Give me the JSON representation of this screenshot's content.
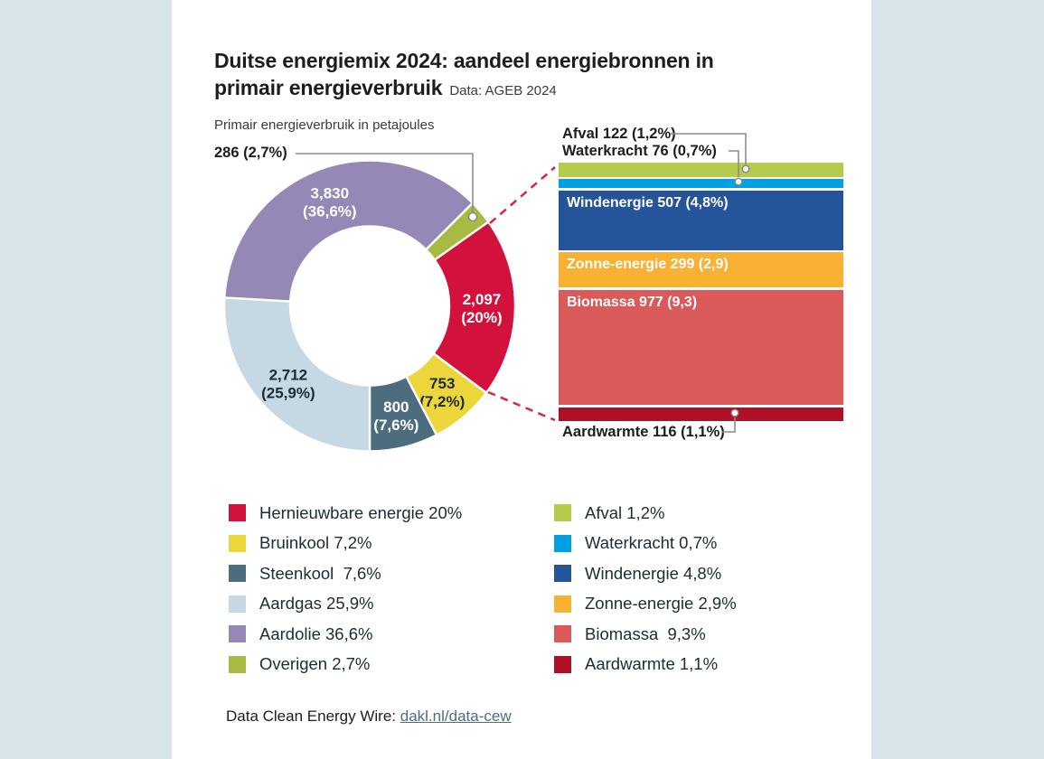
{
  "page": {
    "background_color": "#d7e4e9",
    "card_color": "#ffffff"
  },
  "header": {
    "title_line1": "Duitse energiemix 2024: aandeel energiebronnen in",
    "title_line2": "primair energieverbruik",
    "source_note": "Data: AGEB 2024"
  },
  "donut": {
    "subtitle": "Primair energieverbruik in petajoules",
    "callout_286_label": "286 (2,7%)",
    "segments": [
      {
        "id": "overigen",
        "name": "Overigen",
        "value": 286,
        "pct": 2.7,
        "value_label": "286",
        "pct_label": "(2,7%)",
        "color": "#a9ba42",
        "text_color": "#1a2b33",
        "inside": false
      },
      {
        "id": "hernieuwbare",
        "name": "Hernieuwbare energie",
        "value": 2097,
        "pct": 20,
        "value_label": "2,097",
        "pct_label": "(20%)",
        "color": "#d2113c",
        "text_color": "#ffffff",
        "inside": true
      },
      {
        "id": "bruinkool",
        "name": "Bruinkool",
        "value": 753,
        "pct": 7.2,
        "value_label": "753",
        "pct_label": "(7,2%)",
        "color": "#ecd63b",
        "text_color": "#1a2b33",
        "inside": true
      },
      {
        "id": "steenkool",
        "name": "Steenkool",
        "value": 800,
        "pct": 7.6,
        "value_label": "800",
        "pct_label": "(7,6%)",
        "color": "#4d6d7e",
        "text_color": "#ffffff",
        "inside": true
      },
      {
        "id": "aardgas",
        "name": "Aardgas",
        "value": 2712,
        "pct": 25.9,
        "value_label": "2,712",
        "pct_label": "(25,9%)",
        "color": "#c5d8e3",
        "text_color": "#1a2b33",
        "inside": true
      },
      {
        "id": "aardolie",
        "name": "Aardolie",
        "value": 3830,
        "pct": 36.6,
        "value_label": "3,830",
        "pct_label": "(36,6%)",
        "color": "#9489b6",
        "text_color": "#ffffff",
        "inside": true
      }
    ]
  },
  "bar": {
    "segments": [
      {
        "id": "afval",
        "name": "Afval",
        "value": 122,
        "pct": 1.2,
        "label": "Afval 122 (1,2%)",
        "color": "#b5cb4e",
        "inside": false
      },
      {
        "id": "waterkracht",
        "name": "Waterkracht",
        "value": 76,
        "pct": 0.7,
        "label": "Waterkracht 76 (0,7%)",
        "color": "#00a0e1",
        "inside": false
      },
      {
        "id": "windenergie",
        "name": "Windenergie",
        "value": 507,
        "pct": 4.8,
        "label": "Windenergie 507 (4,8%)",
        "color": "#26549b",
        "inside": true
      },
      {
        "id": "zonne",
        "name": "Zonne-energie",
        "value": 299,
        "pct": 2.9,
        "label": "Zonne-energie 299 (2,9)",
        "color": "#f8b133",
        "inside": true
      },
      {
        "id": "biomassa",
        "name": "Biomassa",
        "value": 977,
        "pct": 9.3,
        "label": "Biomassa 977 (9,3)",
        "color": "#d95a58",
        "inside": true
      },
      {
        "id": "aardwarmte",
        "name": "Aardwarmte",
        "value": 116,
        "pct": 1.1,
        "label": "Aardwarmte 116 (1,1%)",
        "color": "#ae1126",
        "inside": false
      }
    ]
  },
  "legend": {
    "left": [
      {
        "id": "hernieuwbare",
        "label": "Hernieuwbare energie 20%",
        "color": "#d2113c"
      },
      {
        "id": "bruinkool",
        "label": "Bruinkool 7,2%",
        "color": "#ecd63b"
      },
      {
        "id": "steenkool",
        "label": "Steenkool  7,6%",
        "color": "#4d6d7e"
      },
      {
        "id": "aardgas",
        "label": "Aardgas 25,9%",
        "color": "#c5d8e3"
      },
      {
        "id": "aardolie",
        "label": "Aardolie 36,6%",
        "color": "#9489b6"
      },
      {
        "id": "overigen",
        "label": "Overigen 2,7%",
        "color": "#a9ba42"
      }
    ],
    "right": [
      {
        "id": "afval",
        "label": "Afval 1,2%",
        "color": "#b5cb4e"
      },
      {
        "id": "waterkracht",
        "label": "Waterkracht 0,7%",
        "color": "#00a0e1"
      },
      {
        "id": "windenergie",
        "label": "Windenergie 4,8%",
        "color": "#26549b"
      },
      {
        "id": "zonne",
        "label": "Zonne-energie 2,9%",
        "color": "#f8b133"
      },
      {
        "id": "biomassa",
        "label": "Biomassa  9,3%",
        "color": "#d95a58"
      },
      {
        "id": "aardwarmte",
        "label": "Aardwarmte 1,1%",
        "color": "#ae1126"
      }
    ]
  },
  "footer": {
    "prefix": "Data Clean Energy Wire: ",
    "link": "dakl.nl/data-cew"
  },
  "accent_colors": {
    "dashed_link": "#da2540",
    "connector_grey": "#8c8c8c"
  },
  "chart_data": [
    {
      "type": "pie",
      "subtype": "donut",
      "title": "Duitse energiemix 2024: aandeel energiebronnen in primair energieverbruik",
      "source": "Data: AGEB 2024",
      "units": "petajoules",
      "axis_note": "Primair energieverbruik in petajoules",
      "categories": [
        "Overigen",
        "Hernieuwbare energie",
        "Bruinkool",
        "Steenkool",
        "Aardgas",
        "Aardolie"
      ],
      "values": [
        286,
        2097,
        753,
        800,
        2712,
        3830
      ],
      "percents": [
        2.7,
        20,
        7.2,
        7.6,
        25.9,
        36.6
      ],
      "legend_position": "bottom"
    },
    {
      "type": "bar",
      "subtype": "stacked-breakdown-of-renewables",
      "title": "Hernieuwbare energie 2,097 PJ (20%) breakdown",
      "units": "petajoules",
      "categories": [
        "Afval",
        "Waterkracht",
        "Windenergie",
        "Zonne-energie",
        "Biomassa",
        "Aardwarmte"
      ],
      "values": [
        122,
        76,
        507,
        299,
        977,
        116
      ],
      "percents": [
        1.2,
        0.7,
        4.8,
        2.9,
        9.3,
        1.1
      ],
      "legend_position": "bottom"
    }
  ]
}
